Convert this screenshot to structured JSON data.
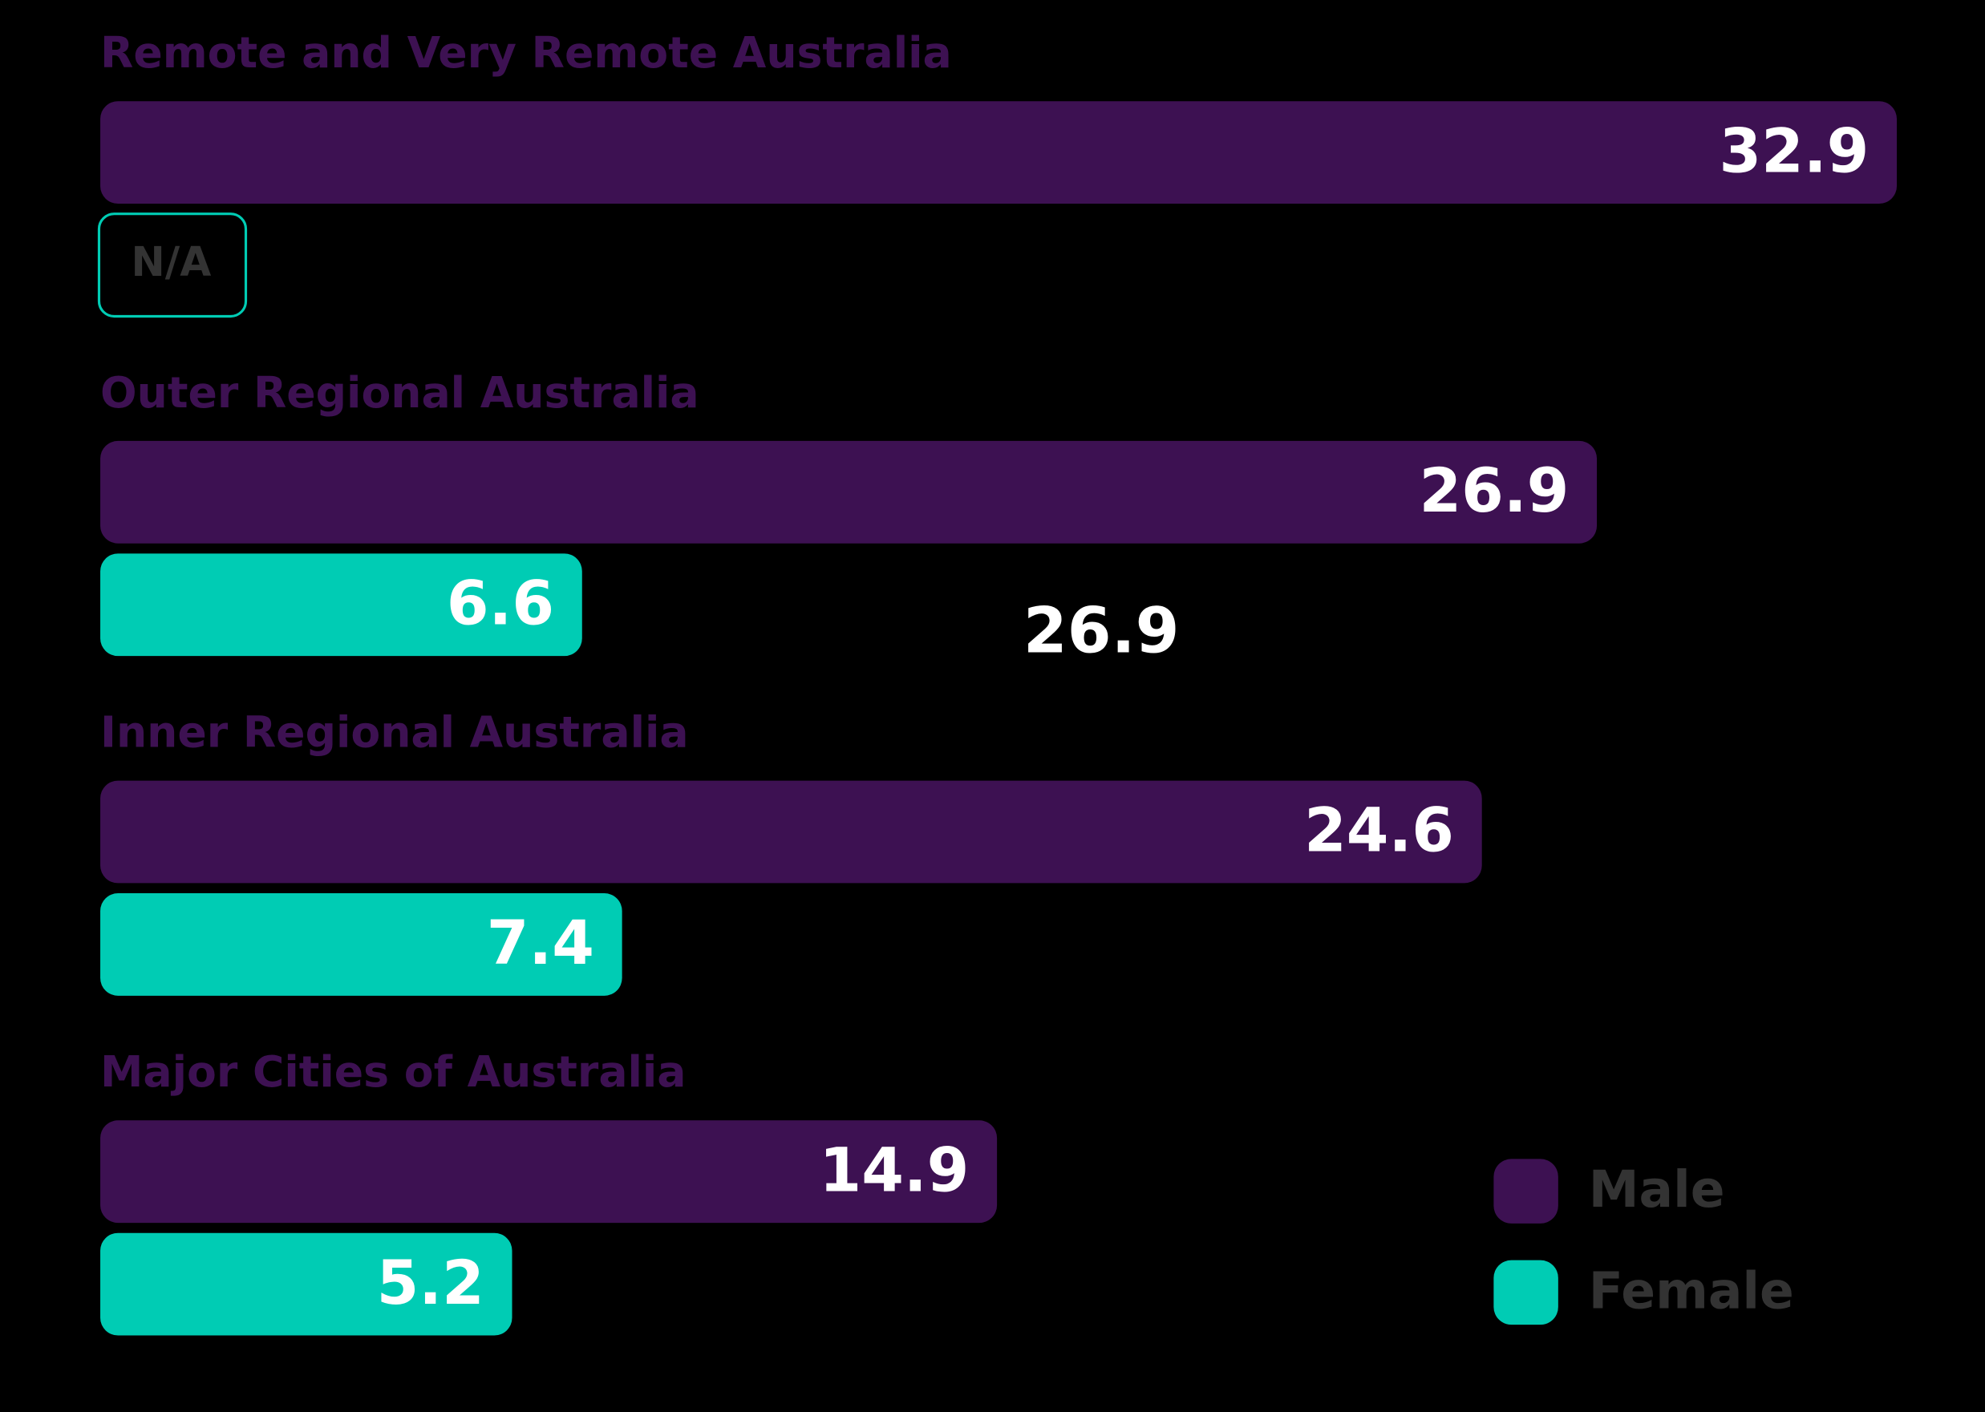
{
  "chart_data": {
    "type": "bar",
    "orientation": "horizontal",
    "categories": [
      "Remote and Very Remote Australia",
      "Outer Regional Australia",
      "Inner Regional Australia",
      "Major Cities of Australia"
    ],
    "series": [
      {
        "name": "Male",
        "color": "#3d1152",
        "values": [
          32.9,
          26.9,
          24.6,
          14.9
        ]
      },
      {
        "name": "Female",
        "color": "#00ccb4",
        "values": [
          null,
          6.6,
          7.4,
          5.2
        ]
      }
    ],
    "missing_label": "N/A",
    "annotation": "26.9",
    "legend": "bottom-right"
  }
}
